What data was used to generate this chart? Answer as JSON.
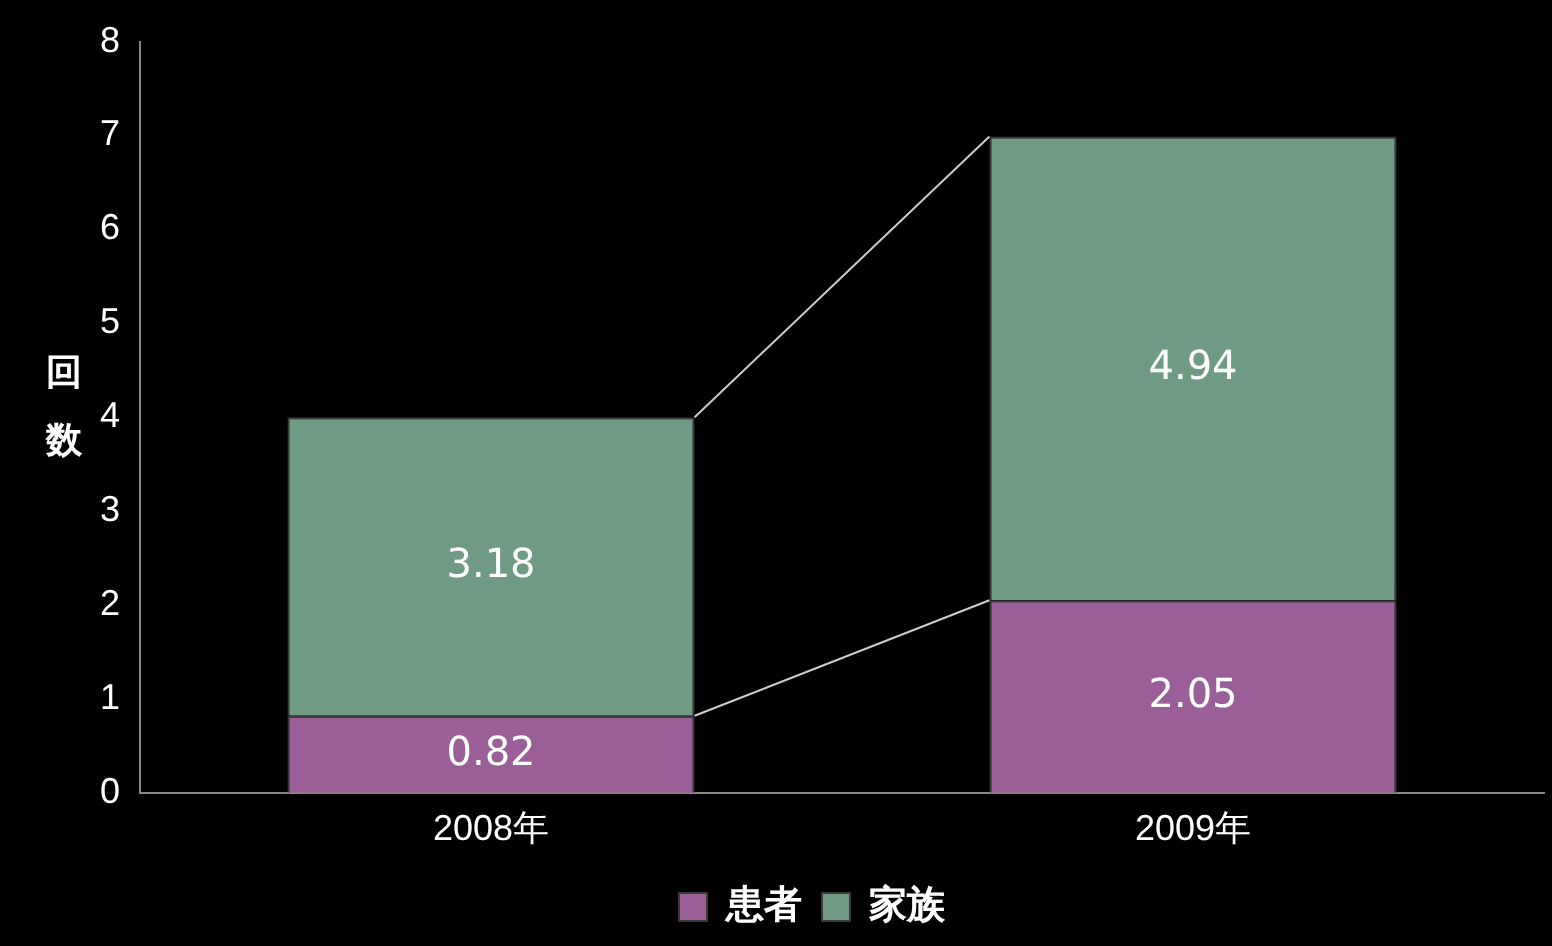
{
  "chart_data": {
    "type": "bar",
    "stacked": true,
    "ylabel": "回数",
    "categories": [
      "2008年",
      "2009年"
    ],
    "series": [
      {
        "name": "患者",
        "color": "#9a5e98",
        "values": [
          0.82,
          2.05
        ]
      },
      {
        "name": "家族",
        "color": "#6f9a84",
        "values": [
          3.18,
          4.94
        ]
      }
    ],
    "ylim": [
      0,
      8
    ],
    "yticks": [
      0,
      1,
      2,
      3,
      4,
      5,
      6,
      7,
      8
    ],
    "grid": false,
    "legend": "bottom",
    "data_labels": true
  }
}
